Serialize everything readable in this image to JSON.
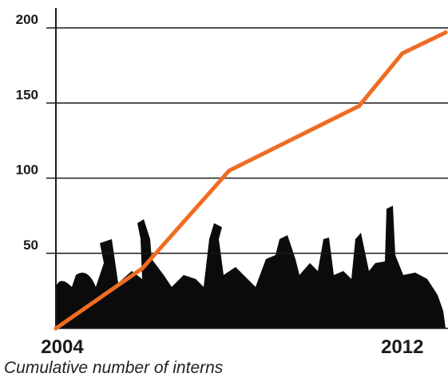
{
  "chart_data": {
    "type": "line",
    "x": [
      2004,
      2006,
      2008,
      2011,
      2012,
      2013
    ],
    "series": [
      {
        "values": [
          0,
          40,
          105,
          148,
          183,
          197
        ]
      }
    ],
    "ytick_labels": [
      "50",
      "100",
      "150",
      "200"
    ],
    "yticks": [
      50,
      100,
      150,
      200
    ],
    "xtick_labels": [
      "2004",
      "2012"
    ],
    "xticks": [
      2004,
      2012
    ],
    "ylim": [
      0,
      200
    ],
    "grid": "horizontal",
    "line_color": "#ef6c22",
    "caption": "Cumulative number of interns"
  }
}
